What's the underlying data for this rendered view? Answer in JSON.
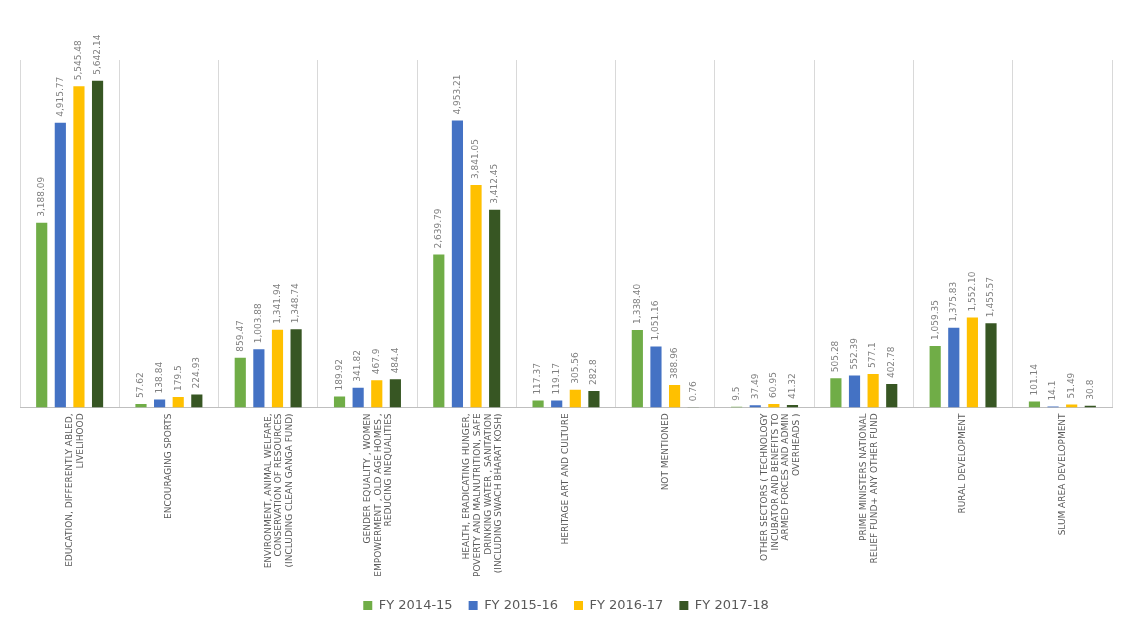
{
  "chart_data": {
    "type": "bar",
    "categories": [
      "EDUCATION, DIFFERENTLY ABLED, LIVELIHOOD",
      "ENCOURAGING SPORTS",
      "ENVIRONMENT, ANIMAL WELFARE, CONSERVATION OF RESOURCES (INCLUDING CLEAN GANGA FUND)",
      "GENDER EQUALITY , WOMEN EMPOWERMENT , OLD AGE HOMES , REDUCING INEQUALITIES",
      "HEALTH, ERADICATING HUNGER, POVERTY AND MALNUTRITION, SAFE DRINKING WATER , SANITATION (INCLUDING SWACH BHARAT KOSH)",
      "HERITAGE ART AND CULTURE",
      "NOT MENTIONED",
      "OTHER SECTORS ( TECHNOLOGY INCUBATOR AND BENEFITS TO ARMED FORCES AND ADMIN OVERHEADS )",
      "PRIME MINISTERS NATIONAL RELIEF FUND+ ANY OTHER FUND",
      "RURAL DEVELOPMENT",
      "SLUM AREA DEVELOPMENT"
    ],
    "series": [
      {
        "name": "FY 2014-15",
        "color": "#70ad47",
        "values": [
          3188.09,
          57.62,
          859.47,
          189.92,
          2639.79,
          117.37,
          1338.4,
          9.5,
          505.28,
          1059.35,
          101.14
        ],
        "value_labels": [
          "3,188.09",
          "57.62",
          "859.47",
          "189.92",
          "2,639.79",
          "117.37",
          "1,338.40",
          "9.5",
          "505.28",
          "1,059.35",
          "101.14"
        ]
      },
      {
        "name": "FY 2015-16",
        "color": "#4472c4",
        "values": [
          4915.77,
          138.84,
          1003.88,
          341.82,
          4953.21,
          119.17,
          1051.16,
          37.49,
          552.39,
          1375.83,
          14.1
        ],
        "value_labels": [
          "4,915.77",
          "138.84",
          "1,003.88",
          "341.82",
          "4,953.21",
          "119.17",
          "1,051.16",
          "37.49",
          "552.39",
          "1,375.83",
          "14.1"
        ]
      },
      {
        "name": "FY 2016-17",
        "color": "#ffc000",
        "values": [
          5545.48,
          179.5,
          1341.94,
          467.9,
          3841.05,
          305.56,
          388.96,
          60.95,
          577.1,
          1552.1,
          51.49
        ],
        "value_labels": [
          "5,545.48",
          "179.5",
          "1,341.94",
          "467.9",
          "3,841.05",
          "305.56",
          "388.96",
          "60.95",
          "577.1",
          "1,552.10",
          "51.49"
        ]
      },
      {
        "name": "FY 2017-18",
        "color": "#375623",
        "values": [
          5642.14,
          224.93,
          1348.74,
          484.4,
          3412.45,
          282.8,
          0.76,
          41.32,
          402.78,
          1455.57,
          30.8
        ],
        "value_labels": [
          "5,642.14",
          "224.93",
          "1,348.74",
          "484.4",
          "3,412.45",
          "282.8",
          "0.76",
          "41.32",
          "402.78",
          "1,455.57",
          "30.8"
        ]
      }
    ],
    "grid": "x",
    "legend": "bottom"
  }
}
